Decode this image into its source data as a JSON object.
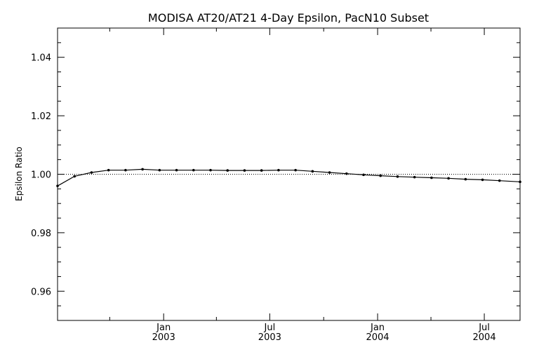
{
  "chart_data": {
    "type": "line",
    "title": "MODISA AT20/AT21 4-Day Epsilon, PacN10 Subset",
    "xlabel": "",
    "ylabel": "Epsilon Ratio",
    "ylim": [
      0.95,
      1.05
    ],
    "xlim": [
      "2002-07-04",
      "2004-08-31"
    ],
    "yticks": [
      "0.96",
      "0.98",
      "1.00",
      "1.02",
      "1.04"
    ],
    "xticks": [
      {
        "date": "2003-01-01",
        "line1": "Jan",
        "line2": "2003"
      },
      {
        "date": "2003-07-01",
        "line1": "Jul",
        "line2": "2003"
      },
      {
        "date": "2004-01-01",
        "line1": "Jan",
        "line2": "2004"
      },
      {
        "date": "2004-07-01",
        "line1": "Jul",
        "line2": "2004"
      }
    ],
    "reference_line": 1.0,
    "series": [
      {
        "points": [
          {
            "x": "2002-07-04",
            "y": 0.996
          },
          {
            "x": "2002-08-02",
            "y": 0.9993
          },
          {
            "x": "2002-08-31",
            "y": 1.0006
          },
          {
            "x": "2002-09-29",
            "y": 1.0014
          },
          {
            "x": "2002-10-28",
            "y": 1.0014
          },
          {
            "x": "2002-11-26",
            "y": 1.0017
          },
          {
            "x": "2002-12-25",
            "y": 1.0014
          },
          {
            "x": "2003-01-23",
            "y": 1.0014
          },
          {
            "x": "2003-02-21",
            "y": 1.0014
          },
          {
            "x": "2003-03-22",
            "y": 1.0014
          },
          {
            "x": "2003-04-20",
            "y": 1.0013
          },
          {
            "x": "2003-05-19",
            "y": 1.0013
          },
          {
            "x": "2003-06-17",
            "y": 1.0013
          },
          {
            "x": "2003-07-16",
            "y": 1.0014
          },
          {
            "x": "2003-08-14",
            "y": 1.0014
          },
          {
            "x": "2003-09-12",
            "y": 1.001
          },
          {
            "x": "2003-10-11",
            "y": 1.0006
          },
          {
            "x": "2003-11-09",
            "y": 1.0002
          },
          {
            "x": "2003-12-08",
            "y": 0.9998
          },
          {
            "x": "2004-01-06",
            "y": 0.9995
          },
          {
            "x": "2004-02-04",
            "y": 0.9992
          },
          {
            "x": "2004-03-04",
            "y": 0.999
          },
          {
            "x": "2004-04-02",
            "y": 0.9988
          },
          {
            "x": "2004-05-01",
            "y": 0.9986
          },
          {
            "x": "2004-05-30",
            "y": 0.9983
          },
          {
            "x": "2004-06-28",
            "y": 0.9981
          },
          {
            "x": "2004-07-27",
            "y": 0.9978
          },
          {
            "x": "2004-08-31",
            "y": 0.9974
          }
        ]
      }
    ],
    "colors": {
      "line": "#000000",
      "reference": "#000000",
      "background": "#ffffff"
    }
  }
}
